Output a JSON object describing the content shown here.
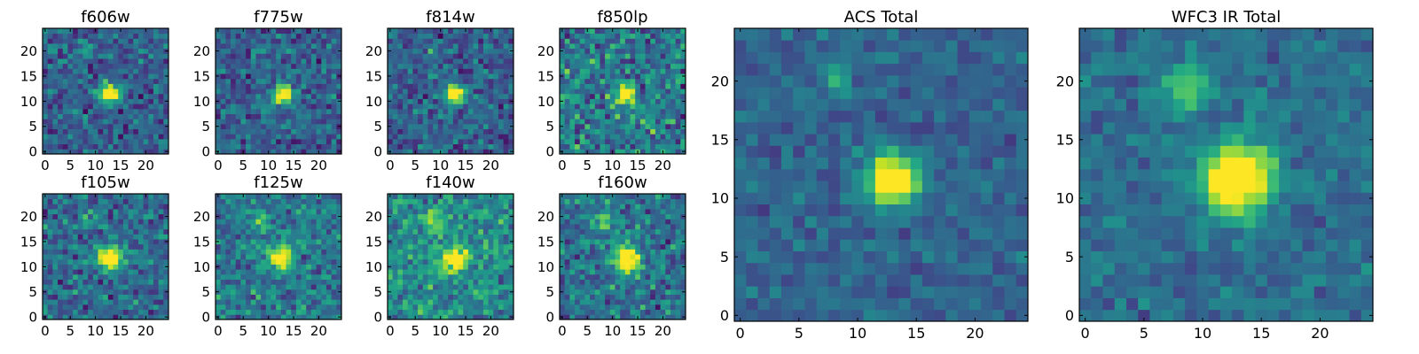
{
  "chart_data": {
    "type": "heatmap",
    "colormap": "viridis",
    "grid_size": 25,
    "panels": [
      {
        "title": "f606w",
        "xticks": [
          "0",
          "5",
          "10",
          "15",
          "20"
        ],
        "yticks": [
          "0",
          "5",
          "10",
          "15",
          "20"
        ],
        "xlim": [
          0,
          24
        ],
        "ylim": [
          0,
          24
        ],
        "sources": [
          {
            "x": 12.8,
            "y": 11.6,
            "peak": 1.0,
            "sigma": 1.3
          },
          {
            "x": 8.2,
            "y": 20.1,
            "peak": 0.35,
            "sigma": 0.9
          }
        ],
        "background": 0.3,
        "noise": 0.22
      },
      {
        "title": "f775w",
        "xticks": [
          "0",
          "5",
          "10",
          "15",
          "20"
        ],
        "yticks": [
          "0",
          "5",
          "10",
          "15",
          "20"
        ],
        "xlim": [
          0,
          24
        ],
        "ylim": [
          0,
          24
        ],
        "sources": [
          {
            "x": 12.9,
            "y": 11.4,
            "peak": 0.95,
            "sigma": 1.3
          },
          {
            "x": 8.2,
            "y": 20.0,
            "peak": 0.3,
            "sigma": 0.9
          }
        ],
        "background": 0.3,
        "noise": 0.22
      },
      {
        "title": "f814w",
        "xticks": [
          "0",
          "5",
          "10",
          "15",
          "20"
        ],
        "yticks": [
          "0",
          "5",
          "10",
          "15",
          "20"
        ],
        "xlim": [
          0,
          24
        ],
        "ylim": [
          0,
          24
        ],
        "sources": [
          {
            "x": 12.8,
            "y": 11.6,
            "peak": 1.0,
            "sigma": 1.25
          },
          {
            "x": 8.0,
            "y": 20.0,
            "peak": 0.3,
            "sigma": 0.9
          }
        ],
        "background": 0.3,
        "noise": 0.22
      },
      {
        "title": "f850lp",
        "xticks": [
          "0",
          "5",
          "10",
          "15",
          "20"
        ],
        "yticks": [
          "0",
          "5",
          "10",
          "15",
          "20"
        ],
        "xlim": [
          0,
          24
        ],
        "ylim": [
          0,
          24
        ],
        "sources": [
          {
            "x": 12.8,
            "y": 11.4,
            "peak": 0.9,
            "sigma": 1.3
          }
        ],
        "background": 0.42,
        "noise": 0.3
      },
      {
        "title": "f105w",
        "xticks": [
          "0",
          "5",
          "10",
          "15",
          "20"
        ],
        "yticks": [
          "0",
          "5",
          "10",
          "15",
          "20"
        ],
        "xlim": [
          0,
          24
        ],
        "ylim": [
          0,
          24
        ],
        "sources": [
          {
            "x": 12.9,
            "y": 11.8,
            "peak": 0.95,
            "sigma": 1.6
          },
          {
            "x": 8.3,
            "y": 19.5,
            "peak": 0.3,
            "sigma": 1.2
          }
        ],
        "background": 0.35,
        "noise": 0.24
      },
      {
        "title": "f125w",
        "xticks": [
          "0",
          "5",
          "10",
          "15",
          "20"
        ],
        "yticks": [
          "0",
          "5",
          "10",
          "15",
          "20"
        ],
        "xlim": [
          0,
          24
        ],
        "ylim": [
          0,
          24
        ],
        "sources": [
          {
            "x": 12.6,
            "y": 11.7,
            "peak": 0.8,
            "sigma": 1.7
          },
          {
            "x": 8.3,
            "y": 19.5,
            "peak": 0.35,
            "sigma": 1.3
          }
        ],
        "background": 0.4,
        "noise": 0.24
      },
      {
        "title": "f140w",
        "xticks": [
          "0",
          "5",
          "10",
          "15",
          "20"
        ],
        "yticks": [
          "0",
          "5",
          "10",
          "15",
          "20"
        ],
        "xlim": [
          0,
          24
        ],
        "ylim": [
          0,
          24
        ],
        "sources": [
          {
            "x": 12.8,
            "y": 11.6,
            "peak": 0.7,
            "sigma": 1.8
          },
          {
            "x": 8.5,
            "y": 19.0,
            "peak": 0.35,
            "sigma": 1.5
          }
        ],
        "background": 0.48,
        "noise": 0.25
      },
      {
        "title": "f160w",
        "xticks": [
          "0",
          "5",
          "10",
          "15",
          "20"
        ],
        "yticks": [
          "0",
          "5",
          "10",
          "15",
          "20"
        ],
        "xlim": [
          0,
          24
        ],
        "ylim": [
          0,
          24
        ],
        "sources": [
          {
            "x": 12.9,
            "y": 11.4,
            "peak": 0.95,
            "sigma": 1.7
          },
          {
            "x": 8.5,
            "y": 19.3,
            "peak": 0.4,
            "sigma": 1.4
          }
        ],
        "background": 0.38,
        "noise": 0.25
      },
      {
        "title": "ACS Total",
        "xticks": [
          "0",
          "5",
          "10",
          "15",
          "20"
        ],
        "yticks": [
          "0",
          "5",
          "10",
          "15",
          "20"
        ],
        "xlim": [
          0,
          24
        ],
        "ylim": [
          0,
          24
        ],
        "sources": [
          {
            "x": 13.0,
            "y": 11.6,
            "peak": 1.0,
            "sigma": 1.55
          },
          {
            "x": 8.3,
            "y": 20.0,
            "peak": 0.33,
            "sigma": 0.9
          }
        ],
        "background": 0.32,
        "noise": 0.13
      },
      {
        "title": "WFC3 IR Total",
        "xticks": [
          "0",
          "5",
          "10",
          "15",
          "20"
        ],
        "yticks": [
          "0",
          "5",
          "10",
          "15",
          "20"
        ],
        "xlim": [
          0,
          24
        ],
        "ylim": [
          0,
          24
        ],
        "sources": [
          {
            "x": 12.8,
            "y": 11.6,
            "peak": 1.0,
            "sigma": 2.0
          },
          {
            "x": 8.7,
            "y": 19.4,
            "peak": 0.35,
            "sigma": 1.6
          }
        ],
        "background": 0.36,
        "noise": 0.14
      }
    ]
  }
}
